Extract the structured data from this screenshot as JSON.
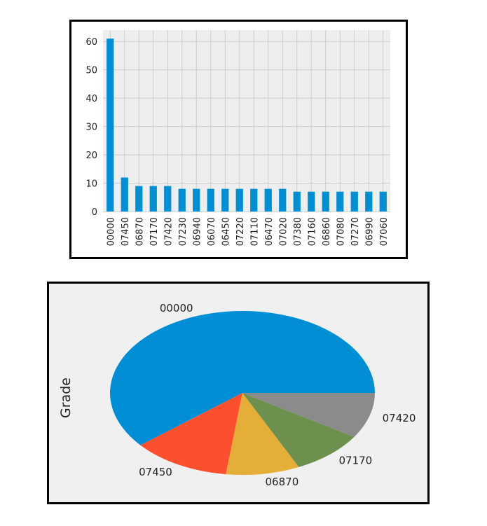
{
  "chart_data": [
    {
      "type": "bar",
      "categories": [
        "00000",
        "07450",
        "06870",
        "07170",
        "07420",
        "07230",
        "06940",
        "06070",
        "06450",
        "07220",
        "07110",
        "06470",
        "07020",
        "07380",
        "07160",
        "06860",
        "07080",
        "07270",
        "06990",
        "07060"
      ],
      "values": [
        61,
        12,
        9,
        9,
        9,
        8,
        8,
        8,
        8,
        8,
        8,
        8,
        8,
        7,
        7,
        7,
        7,
        7,
        7,
        7
      ],
      "ylim": [
        0,
        64
      ],
      "yticks": [
        0,
        10,
        20,
        30,
        40,
        50,
        60
      ],
      "grid": true,
      "color": "#008fd5",
      "background": "#eeeeee"
    },
    {
      "type": "pie",
      "ylabel": "Grade",
      "labels": [
        "00000",
        "07450",
        "06870",
        "07170",
        "07420"
      ],
      "values": [
        61,
        12,
        9,
        9,
        9
      ],
      "colors": [
        "#008fd5",
        "#fc4f30",
        "#e5ae38",
        "#6d904f",
        "#8b8b8b"
      ],
      "startangle": 0,
      "background": "#f0f0f0"
    }
  ]
}
